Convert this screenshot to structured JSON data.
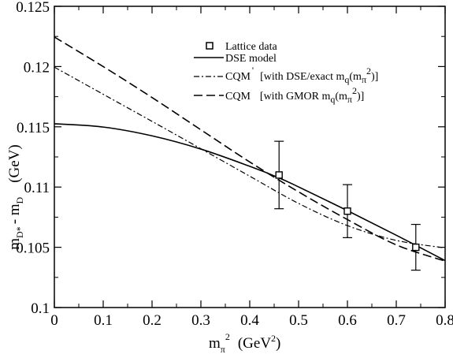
{
  "chart_data": {
    "type": "line",
    "xlim": [
      0,
      0.8
    ],
    "ylim": [
      0.1,
      0.125
    ],
    "x_ticks": [
      0,
      0.1,
      0.2,
      0.3,
      0.4,
      0.5,
      0.6,
      0.7,
      0.8
    ],
    "x_tick_labels": [
      "0",
      "0.1",
      "0.2",
      "0.3",
      "0.4",
      "0.5",
      "0.6",
      "0.7",
      "0.8"
    ],
    "y_ticks": [
      0.1,
      0.105,
      0.11,
      0.115,
      0.12,
      0.125
    ],
    "y_tick_labels": [
      "0.1",
      "0.105",
      "0.11",
      "0.115",
      "0.12",
      "0.125"
    ],
    "xlabel": {
      "main": "m",
      "sub": "π",
      "sup": "2",
      "unit_open": "(GeV",
      "unit_sup": "2",
      "unit_close": ")"
    },
    "ylabel": {
      "m1": "m",
      "s1": "D*",
      "minus": "- m",
      "s2": "D",
      "unit": "(GeV)"
    },
    "grid": false,
    "legend_position": "top-right",
    "legend": {
      "lattice": "Lattice data",
      "dse": "DSE model",
      "cqm1_main": "CQM",
      "cqm1_prime": "'",
      "cqm1_rest_a": "[with DSE/exact m",
      "cqm1_rest_b": "(m",
      "cqm1_rest_c": ")]",
      "cqm2_main": "CQM",
      "cqm2_rest_a": "[with GMOR m",
      "cqm2_rest_b": "(m",
      "cqm2_rest_c": ")]",
      "sub_q": "q",
      "sub_pi": "π",
      "sup_2": "2"
    },
    "series": [
      {
        "style": "solid",
        "x": [
          0,
          0.1,
          0.2,
          0.3,
          0.4,
          0.46,
          0.5,
          0.6,
          0.7,
          0.8
        ],
        "y": [
          0.11525,
          0.11498,
          0.11425,
          0.11315,
          0.11172,
          0.11076,
          0.11001,
          0.10804,
          0.106,
          0.1039
        ]
      },
      {
        "style": "dashdot",
        "x": [
          0,
          0.1,
          0.2,
          0.3,
          0.4,
          0.5,
          0.6,
          0.7,
          0.8
        ],
        "y": [
          0.11995,
          0.1177,
          0.11545,
          0.11318,
          0.1109,
          0.10864,
          0.1068,
          0.10557,
          0.10495
        ]
      },
      {
        "style": "dashed",
        "x": [
          0,
          0.1,
          0.2,
          0.3,
          0.4,
          0.5,
          0.6,
          0.7,
          0.8
        ],
        "y": [
          0.12245,
          0.12,
          0.11743,
          0.11475,
          0.11208,
          0.1096,
          0.1073,
          0.1052,
          0.10385
        ]
      }
    ],
    "points": [
      {
        "x": 0.46,
        "y": 0.111,
        "err": 0.0028
      },
      {
        "x": 0.6,
        "y": 0.108,
        "err": 0.0022
      },
      {
        "x": 0.74,
        "y": 0.105,
        "err": 0.0019
      }
    ]
  }
}
